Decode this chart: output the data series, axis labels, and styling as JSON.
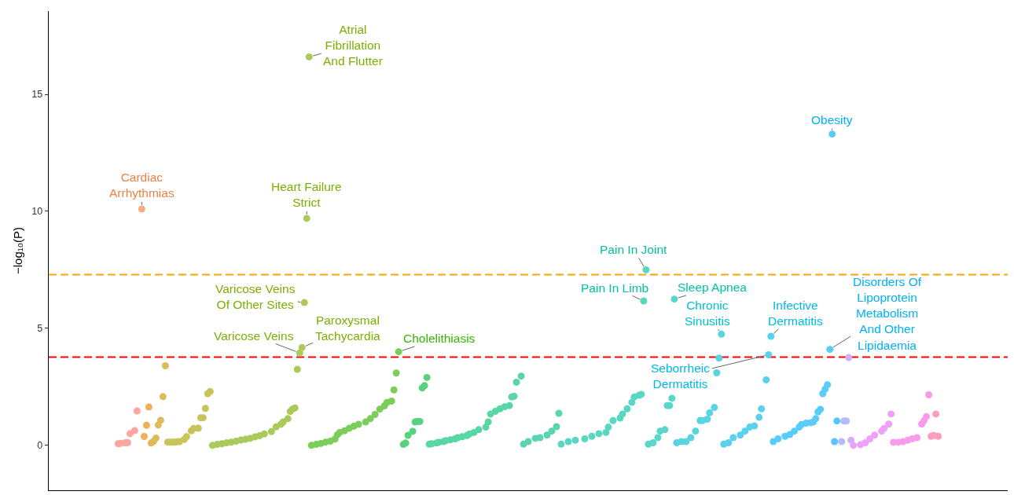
{
  "chart_data": {
    "type": "scatter",
    "ylabel": "−log₁₀(P)",
    "ylim": [
      -1.92,
      18.56
    ],
    "yticks": [
      0,
      5,
      10,
      15
    ],
    "tick_labels": "y",
    "marker": "circle",
    "ref_lines": [
      {
        "axis": "y",
        "value": 7.3,
        "color": "#ffa500",
        "line_style": "dashed"
      },
      {
        "axis": "y",
        "value": 3.77,
        "color": "#ff0000",
        "line_style": "dashed"
      }
    ],
    "categories": [
      null,
      null,
      null,
      null,
      null,
      null,
      null,
      null,
      null,
      null,
      null,
      null,
      null,
      null,
      null,
      null,
      null,
      null,
      null,
      null,
      null,
      null,
      null,
      null,
      null,
      null,
      null,
      null,
      null,
      null,
      null,
      null,
      null,
      null,
      null,
      null,
      null,
      null,
      null,
      null,
      null,
      null,
      null,
      null,
      null,
      null,
      null,
      null,
      null,
      null,
      null,
      null,
      null,
      null,
      null,
      null,
      null,
      null,
      null,
      null,
      null,
      null,
      null,
      null,
      null,
      null,
      null,
      null,
      null,
      null,
      null,
      null,
      null,
      null,
      null,
      null,
      null,
      null,
      null,
      null,
      null,
      null,
      null,
      null,
      null,
      null,
      null,
      null,
      null,
      null,
      null,
      null,
      null,
      null,
      null,
      null,
      null,
      null,
      null,
      null,
      null,
      null,
      null,
      null,
      null,
      null,
      null,
      null,
      null,
      null,
      null,
      null,
      null,
      null,
      null,
      null,
      null,
      null,
      null,
      null,
      null,
      null,
      null,
      null,
      null,
      null,
      null,
      null,
      null,
      null,
      null,
      null,
      null,
      null,
      null,
      null,
      null,
      null,
      null,
      null,
      null,
      null,
      null,
      null,
      null,
      null,
      null,
      null,
      null,
      null,
      null,
      null,
      null,
      null,
      null,
      null,
      null,
      null,
      null,
      null,
      null,
      null,
      null,
      null,
      null,
      null,
      null,
      null,
      null,
      null,
      null,
      null,
      null,
      null,
      null,
      null,
      null,
      null,
      null,
      null,
      null,
      null,
      null,
      null,
      null,
      null,
      null,
      null,
      null,
      null,
      null,
      null,
      null,
      null,
      null,
      null,
      null,
      null,
      null,
      null,
      null,
      null,
      null,
      null,
      null,
      null,
      null,
      null,
      null,
      null,
      null,
      null,
      null,
      null,
      null,
      null,
      null,
      null,
      null,
      null,
      null,
      null,
      null,
      null,
      null,
      null,
      null,
      null,
      null,
      null,
      null,
      null,
      null,
      null,
      null,
      null,
      null,
      null,
      null,
      null,
      null,
      null,
      null,
      null,
      null,
      null,
      null,
      null,
      null,
      null,
      null,
      null,
      null,
      null,
      null,
      null,
      null,
      null,
      null,
      null,
      null,
      null,
      null,
      null,
      null,
      null,
      null,
      null,
      null,
      null,
      null,
      null,
      null,
      null,
      null,
      null,
      null,
      null,
      null,
      null,
      null,
      null,
      null,
      null,
      null,
      null,
      null,
      null,
      null,
      null,
      null,
      null,
      null,
      null,
      null,
      null,
      null,
      null,
      null,
      null,
      null,
      null,
      null,
      null,
      null,
      null,
      null,
      null,
      null,
      null,
      null,
      null,
      null,
      null,
      null,
      null,
      null,
      null,
      null,
      null,
      null,
      null,
      null,
      null,
      null,
      null,
      null,
      null,
      null,
      null,
      null,
      null,
      null,
      null,
      null,
      null,
      null,
      null,
      null,
      null,
      null,
      null,
      null,
      null,
      null,
      null,
      null,
      null,
      null,
      null,
      null,
      null,
      null,
      null,
      null,
      null,
      null,
      null,
      null,
      null,
      null,
      null,
      null,
      null,
      null,
      null,
      null,
      null,
      null,
      null,
      null,
      null,
      null,
      null,
      null,
      null,
      null,
      null,
      null,
      null,
      null,
      null,
      null,
      null,
      null,
      null,
      null,
      null,
      null,
      null,
      null,
      null,
      null,
      null,
      null,
      null,
      null,
      null,
      null,
      null,
      null,
      null,
      null,
      null,
      null,
      null,
      null
    ],
    "values": [
      null,
      null,
      null,
      null,
      null,
      null,
      null,
      null,
      null,
      null,
      null,
      null,
      null,
      null,
      null,
      null,
      null,
      null,
      null,
      null,
      null,
      null,
      null,
      null,
      null,
      null,
      null,
      null,
      null,
      0.07,
      0.09,
      null,
      0.11,
      0.12,
      0.5,
      null,
      0.63,
      1.47,
      null,
      10.1,
      0.38,
      0.86,
      1.64,
      0.1,
      0.17,
      0.31,
      0.87,
      1.07,
      2.08,
      3.4,
      0.14,
      0.14,
      0.14,
      0.14,
      0.15,
      0.16,
      null,
      0.25,
      0.37,
      null,
      0.62,
      0.72,
      null,
      0.73,
      1.18,
      1.18,
      1.58,
      2.21,
      2.3,
      0,
      null,
      0.04,
      null,
      0.07,
      null,
      0.11,
      null,
      0.14,
      null,
      0.18,
      null,
      0.23,
      null,
      0.26,
      null,
      0.3,
      null,
      0.36,
      null,
      0.41,
      null,
      0.49,
      null,
      null,
      0.59,
      null,
      0.79,
      null,
      0.9,
      1,
      null,
      1.14,
      1.45,
      1.55,
      1.6,
      3.25,
      3.95,
      4.18,
      6.1,
      9.7,
      16.6,
      0,
      null,
      0.04,
      null,
      0.08,
      null,
      0.14,
      null,
      0.18,
      null,
      0.27,
      0.45,
      0.55,
      null,
      0.62,
      null,
      0.73,
      null,
      0.82,
      null,
      0.9,
      null,
      null,
      1,
      null,
      1.14,
      null,
      1.32,
      null,
      1.55,
      null,
      1.69,
      1.83,
      null,
      1.89,
      2.37,
      3.09,
      4,
      null,
      0.04,
      0.1,
      0.43,
      null,
      0.6,
      1,
      1.02,
      1.02,
      2.45,
      2.55,
      2.9,
      0.05,
      0.07,
      null,
      0.1,
      0.13,
      null,
      0.16,
      0.2,
      null,
      0.24,
      null,
      0.28,
      0.33,
      null,
      0.37,
      null,
      0.42,
      0.48,
      null,
      0.55,
      null,
      0.67,
      null,
      null,
      0.78,
      1,
      1.34,
      null,
      1.45,
      null,
      1.56,
      null,
      1.65,
      null,
      1.7,
      2.07,
      2.1,
      2.7,
      null,
      2.96,
      0.05,
      null,
      0.16,
      null,
      null,
      0.3,
      null,
      0.33,
      null,
      null,
      0.44,
      null,
      0.61,
      null,
      0.8,
      1.37,
      0.05,
      null,
      null,
      0.16,
      null,
      null,
      0.22,
      null,
      null,
      null,
      0.28,
      null,
      null,
      0.39,
      null,
      null,
      0.5,
      null,
      null,
      0.55,
      0.78,
      null,
      1.06,
      null,
      null,
      1.17,
      1.34,
      null,
      1.56,
      null,
      1.84,
      2.07,
      null,
      2.14,
      2.18,
      6.17,
      7.5,
      0.05,
      null,
      0.11,
      null,
      0.33,
      0.61,
      null,
      0.67,
      1.7,
      1.7,
      2.01,
      6.25,
      0.11,
      null,
      0.16,
      null,
      0.16,
      null,
      0.33,
      null,
      0.61,
      null,
      1.06,
      1.06,
      null,
      1.12,
      1.39,
      null,
      1.62,
      3.1,
      3.73,
      4.75,
      0.05,
      null,
      0.11,
      null,
      0.33,
      null,
      null,
      0.44,
      null,
      0.61,
      null,
      0.78,
      null,
      0.83,
      null,
      1.2,
      1.56,
      null,
      2.8,
      3.87,
      4.66,
      0.16,
      null,
      0.28,
      null,
      null,
      0.39,
      null,
      0.46,
      null,
      0.61,
      null,
      0.78,
      0.89,
      null,
      0.95,
      null,
      0.97,
      1,
      1.14,
      1.43,
      1.54,
      2.21,
      2.4,
      2.59,
      4.1,
      13.3,
      0.16,
      1.04,
      null,
      0.16,
      1.04,
      1.04,
      3.75,
      0.22,
      0,
      null,
      null,
      0.03,
      null,
      0.11,
      null,
      0.28,
      null,
      0.44,
      null,
      null,
      0.61,
      0.72,
      null,
      0.91,
      1.34,
      0.13,
      null,
      0.13,
      null,
      0.16,
      null,
      0.22,
      null,
      0.28,
      null,
      0.33,
      null,
      0.91,
      1.06,
      1.23,
      2.16,
      0.39,
      0.42,
      1.34,
      0.39,
      null,
      null,
      null,
      null,
      null,
      null,
      null,
      null,
      null,
      null,
      null,
      null,
      null,
      null,
      null,
      null,
      null,
      null,
      null,
      null,
      null,
      null,
      null,
      null,
      null,
      null,
      null,
      null,
      null
    ],
    "colors": [
      null,
      null,
      null,
      null,
      null,
      null,
      null,
      null,
      null,
      null,
      null,
      null,
      null,
      null,
      null,
      null,
      null,
      null,
      null,
      null,
      null,
      null,
      null,
      null,
      null,
      null,
      null,
      null,
      null,
      "#fba6a0",
      "#fba6a0",
      null,
      "#fba6a0",
      "#fba6a0",
      "#fba6a0",
      null,
      "#fba6a0",
      "#fba6a0",
      null,
      "#f4ad88",
      "#eeb159",
      "#eeb159",
      "#eeb159",
      "#eeb159",
      "#dcbc59",
      "#dcbc59",
      "#dcbc59",
      "#dcbc59",
      "#dcbc59",
      "#dcbc59",
      "#c7c459",
      "#c7c459",
      "#c7c459",
      "#c7c459",
      "#c7c459",
      "#c7c459",
      null,
      "#c7c459",
      "#c7c459",
      null,
      "#c7c459",
      "#c7c459",
      null,
      "#c7c459",
      "#c7c459",
      "#c7c459",
      "#c7c459",
      "#c7c459",
      "#c7c459",
      "#aacb59",
      null,
      "#aacb59",
      null,
      "#aacb59",
      null,
      "#aacb59",
      null,
      "#aacb59",
      null,
      "#aacb59",
      null,
      "#aacb59",
      null,
      "#aacb59",
      null,
      "#aacb59",
      null,
      "#aacb59",
      null,
      "#aacb59",
      null,
      "#aacb59",
      null,
      null,
      "#aacb59",
      null,
      "#aacb59",
      null,
      "#aacb59",
      "#aacb59",
      null,
      "#aacb59",
      "#aacb59",
      "#aacb59",
      "#aacb59",
      "#aacb59",
      "#aacb59",
      "#aacb59",
      "#aacb59",
      "#aacb59",
      "#aacb59",
      "#7bcf59",
      null,
      "#7bcf59",
      null,
      "#7bcf59",
      null,
      "#7bcf59",
      null,
      "#7bcf59",
      null,
      "#7bcf59",
      "#7bcf59",
      "#7bcf59",
      null,
      "#7bcf59",
      null,
      "#7bcf59",
      null,
      "#7bcf59",
      null,
      "#7bcf59",
      null,
      null,
      "#7bcf59",
      null,
      "#7bcf59",
      null,
      "#7bcf59",
      null,
      "#7bcf59",
      null,
      "#7bcf59",
      "#7bcf59",
      null,
      "#7bcf59",
      "#7bcf59",
      "#7bcf59",
      "#7bcf59",
      null,
      "#59d27e",
      "#59d27e",
      "#59d27e",
      null,
      "#59d27e",
      "#59d27e",
      "#59d27e",
      "#59d27e",
      "#59d27e",
      "#59d27e",
      "#59d27e",
      "#59d6a5",
      "#59d6a5",
      null,
      "#59d6a5",
      "#59d6a5",
      null,
      "#59d6a5",
      "#59d6a5",
      null,
      "#59d6a5",
      null,
      "#59d6a5",
      "#59d6a5",
      null,
      "#59d6a5",
      null,
      "#59d6a5",
      "#59d6a5",
      null,
      "#59d6a5",
      null,
      "#59d6a5",
      null,
      null,
      "#59d6a5",
      "#59d6a5",
      "#59d6a5",
      null,
      "#59d6a5",
      null,
      "#59d6a5",
      null,
      "#59d6a5",
      null,
      "#59d6a5",
      "#59d6a5",
      "#59d6a5",
      "#59d6a5",
      null,
      "#59d6a5",
      "#59d6b1",
      null,
      "#59d6b1",
      null,
      null,
      "#59d6b1",
      null,
      "#59d6b1",
      null,
      null,
      "#59d6b1",
      null,
      "#59d6b1",
      null,
      "#59d6b1",
      "#59d6b1",
      "#59d7c1",
      null,
      null,
      "#59d7c1",
      null,
      null,
      "#59d7c1",
      null,
      null,
      null,
      "#59d7c1",
      null,
      null,
      "#59d7c1",
      null,
      null,
      "#59d7c1",
      null,
      null,
      "#59d7c1",
      "#59d7c1",
      null,
      "#59d7c1",
      null,
      null,
      "#59d7c1",
      "#59d7c1",
      null,
      "#59d7c1",
      null,
      "#59d7c1",
      "#59d7c1",
      null,
      "#59d7c1",
      "#59d7c1",
      "#59d7c1",
      "#59d7c1",
      "#59d7c9",
      null,
      "#59d7c9",
      null,
      "#59d7c9",
      "#59d7c9",
      null,
      "#59d7c9",
      "#59d7c9",
      "#59d7c9",
      "#59d7c9",
      "#59d7c9",
      "#59d4e2",
      null,
      "#59d4e2",
      null,
      "#59d4e2",
      null,
      "#59d4e2",
      null,
      "#59d4e2",
      null,
      "#59d4e2",
      "#59d4e2",
      null,
      "#59d4e2",
      "#59d4e2",
      null,
      "#59d4e2",
      "#59d4e2",
      "#59d4e2",
      "#59d4e2",
      "#59d1ef",
      null,
      "#59d1ef",
      null,
      "#59d1ef",
      null,
      null,
      "#59d1ef",
      null,
      "#59d1ef",
      null,
      "#59d1ef",
      null,
      "#59d1ef",
      null,
      "#59d1ef",
      "#59d1ef",
      null,
      "#59d1ef",
      "#59d1ef",
      "#59d1ef",
      "#59ccf9",
      null,
      "#59ccf9",
      null,
      null,
      "#59ccf9",
      null,
      "#59ccf9",
      null,
      "#59ccf9",
      null,
      "#59ccf9",
      "#59ccf9",
      null,
      "#59ccf9",
      null,
      "#59ccf9",
      "#59ccf9",
      "#59ccf9",
      "#59ccf9",
      "#59ccf9",
      "#59ccf9",
      "#59ccf9",
      "#59ccf9",
      "#59ccf9",
      "#59ccf9",
      "#59c5ff",
      "#59c5ff",
      null,
      "#b4baff",
      "#b4baff",
      "#b4baff",
      "#d1aeff",
      "#d1aeff",
      "#eda1f9",
      null,
      null,
      "#eda1f9",
      null,
      "#eda1f9",
      null,
      "#eda1f9",
      null,
      "#eda1f9",
      null,
      null,
      "#eda1f9",
      "#eda1f9",
      null,
      "#eda1f9",
      "#eda1f9",
      "#f89bed",
      null,
      "#f89bed",
      null,
      "#f89bed",
      null,
      "#f89bed",
      null,
      "#f89bed",
      null,
      "#f89bed",
      null,
      "#f89bed",
      "#f89bed",
      "#f89bed",
      "#f89bed",
      "#ff9ebc",
      "#ff9ebc",
      "#ff9ebc",
      "#ff9ebc",
      null,
      null,
      null,
      null,
      null,
      null,
      null,
      null,
      null,
      null,
      null,
      null,
      null,
      null,
      null,
      null,
      null,
      null,
      null,
      null,
      null,
      null,
      null,
      null,
      null,
      null,
      null,
      null,
      null
    ],
    "value_labels": [
      null,
      null,
      null,
      null,
      null,
      null,
      null,
      null,
      null,
      null,
      null,
      null,
      null,
      null,
      null,
      null,
      null,
      null,
      null,
      null,
      null,
      null,
      null,
      null,
      null,
      null,
      null,
      null,
      null,
      null,
      null,
      null,
      null,
      null,
      null,
      null,
      null,
      null,
      null,
      "Cardiac Arrhythmias",
      null,
      null,
      null,
      null,
      null,
      null,
      null,
      null,
      null,
      null,
      null,
      null,
      null,
      null,
      null,
      null,
      null,
      null,
      null,
      null,
      null,
      null,
      null,
      null,
      null,
      null,
      null,
      null,
      null,
      null,
      null,
      null,
      null,
      null,
      null,
      null,
      null,
      null,
      null,
      null,
      null,
      null,
      null,
      null,
      null,
      null,
      null,
      null,
      null,
      null,
      null,
      null,
      null,
      null,
      null,
      null,
      null,
      null,
      null,
      null,
      null,
      null,
      null,
      null,
      null,
      null,
      "Varicose Veins",
      "Paroxysmal Tachycardia",
      "Varicose Veins Of Other Sites",
      "Heart Failure Strict",
      "Atrial Fibrillation And Flutter",
      null,
      null,
      null,
      null,
      null,
      null,
      null,
      null,
      null,
      null,
      null,
      null,
      null,
      null,
      null,
      null,
      null,
      null,
      null,
      null,
      null,
      null,
      null,
      null,
      null,
      null,
      null,
      null,
      null,
      null,
      null,
      null,
      null,
      null,
      null,
      null,
      null,
      "Cholelithiasis",
      null,
      null,
      null,
      null,
      null,
      null,
      null,
      null,
      null,
      null,
      null,
      null,
      null,
      null,
      null,
      null,
      null,
      null,
      null,
      null,
      null,
      null,
      null,
      null,
      null,
      null,
      null,
      null,
      null,
      null,
      null,
      null,
      null,
      null,
      null,
      null,
      null,
      null,
      null,
      null,
      null,
      null,
      null,
      null,
      null,
      null,
      null,
      null,
      null,
      null,
      null,
      null,
      null,
      null,
      null,
      null,
      null,
      null,
      null,
      null,
      null,
      null,
      null,
      null,
      null,
      null,
      null,
      null,
      null,
      null,
      null,
      null,
      null,
      null,
      null,
      null,
      null,
      null,
      null,
      null,
      null,
      null,
      null,
      null,
      null,
      null,
      null,
      null,
      null,
      null,
      null,
      null,
      null,
      null,
      null,
      null,
      null,
      null,
      null,
      null,
      null,
      null,
      null,
      "Pain In Limb",
      "Pain In Joint",
      null,
      null,
      null,
      null,
      null,
      null,
      null,
      null,
      null,
      null,
      null,
      "Sleep Apnea",
      null,
      null,
      null,
      null,
      null,
      null,
      null,
      null,
      null,
      null,
      null,
      null,
      null,
      null,
      null,
      null,
      null,
      null,
      null,
      "Chronic Sinusitis",
      null,
      null,
      null,
      null,
      null,
      null,
      null,
      null,
      null,
      null,
      null,
      null,
      null,
      null,
      null,
      null,
      null,
      null,
      null,
      "Seborrheic Dermatitis",
      "Infective Dermatitis",
      null,
      null,
      null,
      null,
      null,
      null,
      null,
      null,
      null,
      null,
      null,
      null,
      null,
      null,
      null,
      null,
      null,
      null,
      null,
      null,
      null,
      null,
      null,
      null,
      "Disorders Of Lipoprotein Metabolism And Other Lipidaemia",
      "Obesity",
      null,
      null,
      null,
      null,
      null,
      null,
      null,
      null,
      null,
      null,
      null,
      null,
      null,
      null,
      null,
      null,
      null,
      null,
      null,
      null,
      null,
      null,
      null,
      null,
      null,
      null,
      null,
      null,
      null,
      null,
      null,
      null,
      null,
      null,
      null,
      null,
      null,
      null,
      null,
      null,
      null,
      null,
      null,
      null,
      null,
      null,
      null,
      null,
      null,
      null,
      null,
      null,
      null,
      null,
      null,
      null,
      null,
      null,
      null,
      null,
      null,
      null,
      null,
      null,
      null,
      null,
      null,
      null,
      null,
      null,
      null,
      null,
      null,
      null
    ]
  }
}
